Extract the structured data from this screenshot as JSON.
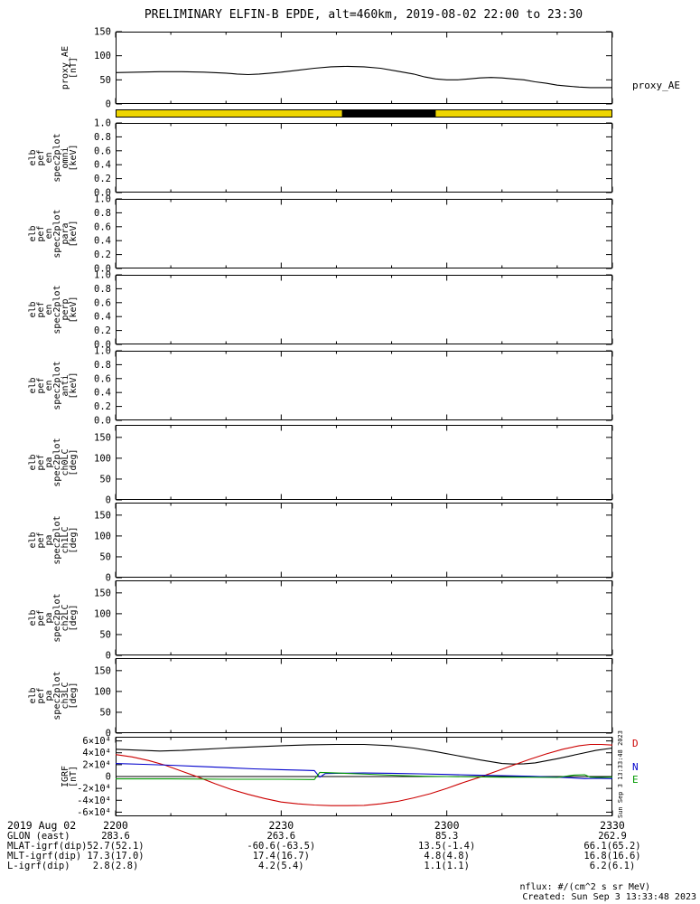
{
  "title": "PRELIMINARY ELFIN-B EPDE, alt=460km, 2019-08-02 22:00 to 23:30",
  "right_labels": {
    "proxy_ae": "proxy_AE"
  },
  "igrf_legend": {
    "d": {
      "label": "D",
      "color": "#cc0000"
    },
    "n": {
      "label": "N",
      "color": "#0000cc"
    },
    "e": {
      "label": "E",
      "color": "#009900"
    }
  },
  "side_timestamp": "Sun Sep  3 13:33:48 2023",
  "footer": {
    "nflux": "nflux: #/(cm^2 s sr MeV)",
    "created": "Created: Sun Sep  3 13:33:48 2023"
  },
  "xaxis": {
    "date_label": "2019 Aug 02",
    "tick_labels": [
      "2200",
      "2230",
      "2300",
      "2330"
    ],
    "tick_minutes": [
      0,
      30,
      60,
      90
    ],
    "minor_every": 10,
    "range_minutes": [
      0,
      90
    ]
  },
  "info_rows": [
    {
      "label": "GLON (east)",
      "values": [
        "283.6",
        "263.6",
        "85.3",
        "262.9"
      ]
    },
    {
      "label": "MLAT-igrf(dip)",
      "values": [
        "52.7(52.1)",
        "-60.6(-63.5)",
        "13.5(-1.4)",
        "66.1(65.2)"
      ]
    },
    {
      "label": "MLT-igrf(dip)",
      "values": [
        "17.3(17.0)",
        "17.4(16.7)",
        "4.8(4.8)",
        "16.8(16.6)"
      ]
    },
    {
      "label": "L-igrf(dip)",
      "values": [
        "2.8(2.8)",
        "4.2(5.4)",
        "1.1(1.1)",
        "6.2(6.1)"
      ]
    }
  ],
  "availability_bar": {
    "segments": [
      {
        "start_min": 0,
        "end_min": 41,
        "color": "#eed500"
      },
      {
        "start_min": 41,
        "end_min": 58,
        "color": "#000000"
      },
      {
        "start_min": 58,
        "end_min": 90,
        "color": "#eed500"
      }
    ]
  },
  "chart_data": [
    {
      "id": "proxy_ae",
      "type": "line",
      "ylabel": "proxy_AE [nT]",
      "ylabel_words": [
        "proxy_AE",
        "[nT]"
      ],
      "x_unit": "minutes after 2019-08-02 22:00 UT",
      "ylim": [
        0,
        150
      ],
      "yticks": [
        0,
        50,
        100,
        150
      ],
      "ytick_labels": [
        "0",
        "50",
        "100",
        "150"
      ],
      "series": [
        {
          "name": "proxy_AE",
          "color": "#000000",
          "x": [
            0,
            4,
            8,
            12,
            16,
            20,
            22,
            24,
            26,
            28,
            30,
            33,
            36,
            39,
            42,
            45,
            48,
            51,
            54,
            56,
            58,
            60,
            62,
            64,
            66,
            68,
            70,
            72,
            74,
            76,
            78,
            80,
            82,
            84,
            86,
            88,
            90
          ],
          "y": [
            65,
            66,
            67,
            67,
            66,
            64,
            62,
            61,
            62,
            64,
            66,
            70,
            74,
            77,
            78,
            77,
            74,
            68,
            62,
            56,
            52,
            50,
            50,
            52,
            54,
            55,
            54,
            52,
            50,
            46,
            43,
            39,
            37,
            35,
            34,
            34,
            34
          ]
        }
      ]
    },
    {
      "id": "omni",
      "type": "spectrogram",
      "ylabel": "elb pef en spec2plot omni [keV]",
      "ylabel_words": [
        "elb",
        "pef",
        "en",
        "spec2plot",
        "omni",
        "[keV]"
      ],
      "ylim": [
        0,
        1
      ],
      "yticks": [
        0,
        0.2,
        0.4,
        0.6,
        0.8,
        1
      ],
      "ytick_labels": [
        "0.0",
        "0.2",
        "0.4",
        "0.6",
        "0.8",
        "1.0"
      ],
      "series": []
    },
    {
      "id": "para",
      "type": "spectrogram",
      "ylabel": "elb pef en spec2plot para [keV]",
      "ylabel_words": [
        "elb",
        "pef",
        "en",
        "spec2plot",
        "para",
        "[keV]"
      ],
      "ylim": [
        0,
        1
      ],
      "yticks": [
        0,
        0.2,
        0.4,
        0.6,
        0.8,
        1
      ],
      "ytick_labels": [
        "0.0",
        "0.2",
        "0.4",
        "0.6",
        "0.8",
        "1.0"
      ],
      "series": []
    },
    {
      "id": "perp",
      "type": "spectrogram",
      "ylabel": "elb pef en spec2plot perp [keV]",
      "ylabel_words": [
        "elb",
        "pef",
        "en",
        "spec2plot",
        "perp",
        "[keV]"
      ],
      "ylim": [
        0,
        1
      ],
      "yticks": [
        0,
        0.2,
        0.4,
        0.6,
        0.8,
        1
      ],
      "ytick_labels": [
        "0.0",
        "0.2",
        "0.4",
        "0.6",
        "0.8",
        "1.0"
      ],
      "series": []
    },
    {
      "id": "anti",
      "type": "spectrogram",
      "ylabel": "elb pef en spec2plot anti [keV]",
      "ylabel_words": [
        "elb",
        "pef",
        "en",
        "spec2plot",
        "anti",
        "[keV]"
      ],
      "ylim": [
        0,
        1
      ],
      "yticks": [
        0,
        0.2,
        0.4,
        0.6,
        0.8,
        1
      ],
      "ytick_labels": [
        "0.0",
        "0.2",
        "0.4",
        "0.6",
        "0.8",
        "1.0"
      ],
      "series": []
    },
    {
      "id": "ch0lc",
      "type": "spectrogram",
      "ylabel": "elb pef pa spec2plot ch0LC [deg]",
      "ylabel_words": [
        "elb",
        "pef",
        "pa",
        "spec2plot",
        "ch0LC",
        "[deg]"
      ],
      "ylim": [
        0,
        180
      ],
      "yticks": [
        0,
        50,
        100,
        150
      ],
      "ytick_labels": [
        "0",
        "50",
        "100",
        "150"
      ],
      "series": []
    },
    {
      "id": "ch1lc",
      "type": "spectrogram",
      "ylabel": "elb pef pa spec2plot ch1LC [deg]",
      "ylabel_words": [
        "elb",
        "pef",
        "pa",
        "spec2plot",
        "ch1LC",
        "[deg]"
      ],
      "ylim": [
        0,
        180
      ],
      "yticks": [
        0,
        50,
        100,
        150
      ],
      "ytick_labels": [
        "0",
        "50",
        "100",
        "150"
      ],
      "series": []
    },
    {
      "id": "ch2lc",
      "type": "spectrogram",
      "ylabel": "elb pef pa spec2plot ch2LC [deg]",
      "ylabel_words": [
        "elb",
        "pef",
        "pa",
        "spec2plot",
        "ch2LC",
        "[deg]"
      ],
      "ylim": [
        0,
        180
      ],
      "yticks": [
        0,
        50,
        100,
        150
      ],
      "ytick_labels": [
        "0",
        "50",
        "100",
        "150"
      ],
      "series": []
    },
    {
      "id": "ch3lc",
      "type": "spectrogram",
      "ylabel": "elb pef pa spec2plot ch3LC [deg]",
      "ylabel_words": [
        "elb",
        "pef",
        "pa",
        "spec2plot",
        "ch3LC",
        "[deg]"
      ],
      "ylim": [
        0,
        180
      ],
      "yticks": [
        0,
        50,
        100,
        150
      ],
      "ytick_labels": [
        "0",
        "50",
        "100",
        "150"
      ],
      "series": []
    },
    {
      "id": "igrf",
      "type": "line",
      "ylabel": "IGRF [nT]",
      "ylabel_words": [
        "IGRF",
        "[nT]"
      ],
      "x_unit": "minutes after 2019-08-02 22:00 UT",
      "ylim": [
        -67000,
        67000
      ],
      "yticks": [
        -60000,
        -40000,
        -20000,
        0,
        20000,
        40000,
        60000
      ],
      "ytick_labels": [
        "-6×10⁴",
        "-4×10⁴",
        "-2×10⁴",
        "0",
        "2×10⁴",
        "4×10⁴",
        "6×10⁴"
      ],
      "zero_line": true,
      "legend_position": "right",
      "series": [
        {
          "name": "B",
          "color": "#000000",
          "x": [
            0,
            5,
            8,
            12,
            16,
            20,
            25,
            30,
            35,
            40,
            45,
            50,
            54,
            58,
            62,
            66,
            70,
            72,
            74,
            76,
            80,
            84,
            87,
            90
          ],
          "y": [
            46000,
            44000,
            43000,
            44000,
            46000,
            48000,
            50000,
            52000,
            53500,
            54000,
            54000,
            52000,
            48000,
            42000,
            35000,
            28000,
            22000,
            21000,
            21500,
            23000,
            30000,
            38000,
            44000,
            48000
          ]
        },
        {
          "name": "D",
          "color": "#cc0000",
          "x": [
            0,
            3,
            6,
            9,
            12,
            15,
            18,
            21,
            24,
            27,
            30,
            33,
            36,
            39,
            42,
            45,
            48,
            51,
            54,
            57,
            60,
            63,
            66,
            69,
            72,
            75,
            78,
            81,
            84,
            86,
            88,
            90
          ],
          "y": [
            37000,
            33000,
            27000,
            19000,
            9000,
            -1000,
            -12000,
            -22000,
            -30000,
            -37000,
            -43000,
            -46000,
            -48000,
            -49000,
            -49000,
            -48500,
            -46000,
            -42000,
            -36000,
            -29000,
            -20000,
            -10000,
            -1000,
            9000,
            19000,
            29000,
            38000,
            46000,
            52000,
            54000,
            54000,
            53000
          ]
        },
        {
          "name": "N",
          "color": "#0000cc",
          "x": [
            0,
            5,
            10,
            15,
            20,
            25,
            30,
            34,
            36,
            37,
            38,
            40,
            45,
            50,
            55,
            60,
            65,
            70,
            75,
            80,
            83,
            85,
            87,
            90
          ],
          "y": [
            22000,
            20500,
            19000,
            17000,
            15000,
            13000,
            11500,
            10500,
            10000,
            -1000,
            5000,
            5500,
            6000,
            5500,
            4500,
            3500,
            2500,
            1500,
            500,
            -1000,
            -2500,
            -3500,
            -3000,
            -3500
          ]
        },
        {
          "name": "E",
          "color": "#009900",
          "x": [
            0,
            10,
            20,
            30,
            36,
            37,
            40,
            44,
            48,
            52,
            56,
            60,
            65,
            70,
            75,
            80,
            83,
            85,
            86,
            88,
            90
          ],
          "y": [
            -4000,
            -4000,
            -4500,
            -4500,
            -5000,
            7000,
            6000,
            4500,
            3000,
            1500,
            500,
            0,
            -500,
            -1000,
            -1000,
            -1500,
            2500,
            3000,
            -1000,
            -1500,
            -1000
          ]
        }
      ]
    }
  ]
}
